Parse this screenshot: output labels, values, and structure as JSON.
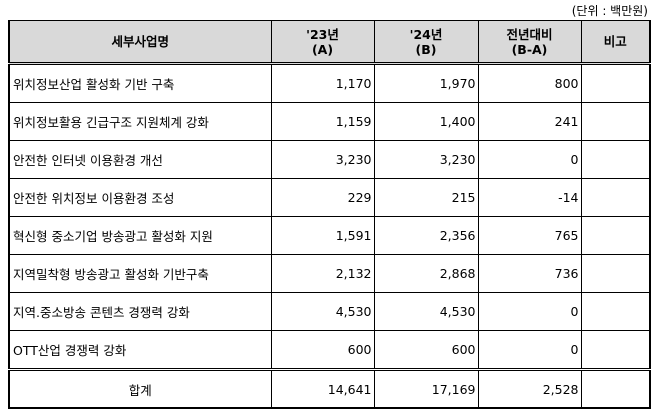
{
  "unit_note": "(단위 : 백만원)",
  "headers": {
    "name": "세부사업명",
    "y23_line1": "'23년",
    "y23_line2": "(A)",
    "y24_line1": "'24년",
    "y24_line2": "(B)",
    "diff_line1": "전년대비",
    "diff_line2": "(B-A)",
    "note": "비고"
  },
  "rows": [
    {
      "name": "위치정보산업 활성화 기반 구축",
      "y23": "1,170",
      "y24": "1,970",
      "diff": "800",
      "note": ""
    },
    {
      "name": "위치정보활용 긴급구조 지원체계 강화",
      "y23": "1,159",
      "y24": "1,400",
      "diff": "241",
      "note": ""
    },
    {
      "name": "안전한 인터넷 이용환경 개선",
      "y23": "3,230",
      "y24": "3,230",
      "diff": "0",
      "note": ""
    },
    {
      "name": "안전한 위치정보 이용환경 조성",
      "y23": "229",
      "y24": "215",
      "diff": "-14",
      "note": ""
    },
    {
      "name": "혁신형 중소기업 방송광고 활성화 지원",
      "y23": "1,591",
      "y24": "2,356",
      "diff": "765",
      "note": ""
    },
    {
      "name": "지역밀착형 방송광고 활성화 기반구축",
      "y23": "2,132",
      "y24": "2,868",
      "diff": "736",
      "note": ""
    },
    {
      "name": "지역.중소방송 콘텐츠 경쟁력 강화",
      "y23": "4,530",
      "y24": "4,530",
      "diff": "0",
      "note": ""
    },
    {
      "name": "OTT산업 경쟁력 강화",
      "y23": "600",
      "y24": "600",
      "diff": "0",
      "note": ""
    }
  ],
  "total": {
    "label": "합계",
    "y23": "14,641",
    "y24": "17,169",
    "diff": "2,528",
    "note": ""
  }
}
